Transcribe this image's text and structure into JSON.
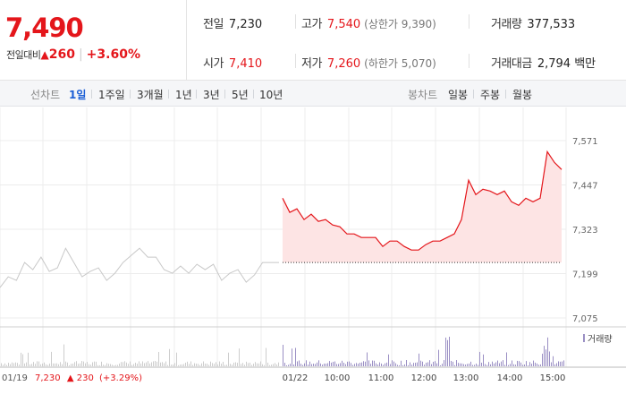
{
  "quote": {
    "price": "7,490",
    "change_label": "전일대비",
    "change_icon": "up-triangle-icon",
    "change_symbol": "▲",
    "change_value": "260",
    "change_pct": "+3.60%",
    "stats": {
      "prev_close": {
        "label": "전일",
        "value": "7,230"
      },
      "high": {
        "label": "고가",
        "value": "7,540",
        "sub": "(상한가 9,390)"
      },
      "volume": {
        "label": "거래량",
        "value": "377,533"
      },
      "open": {
        "label": "시가",
        "value": "7,410"
      },
      "low": {
        "label": "저가",
        "value": "7,260",
        "sub": "(하한가 5,070)"
      },
      "trade_value": {
        "label": "거래대금",
        "value": "2,794 백만"
      }
    }
  },
  "tabs": {
    "line_label": "선차트",
    "line_items": [
      "1일",
      "1주일",
      "3개월",
      "1년",
      "3년",
      "5년",
      "10년"
    ],
    "line_active": 0,
    "candle_label": "봉차트",
    "candle_items": [
      "일봉",
      "주봉",
      "월봉"
    ]
  },
  "colors": {
    "up": "#e4161b",
    "prev_day_line": "#c8c8c8",
    "fill": "#fde4e4",
    "volume": "#9a8fc4",
    "link": "#1c5fd6"
  },
  "chart_data": {
    "type": "line",
    "ylim": [
      7075,
      7571
    ],
    "y_ticks": [
      7571,
      7447,
      7323,
      7199,
      7075
    ],
    "x_ticks": [
      "01/22",
      "10:00",
      "11:00",
      "12:00",
      "13:00",
      "14:00",
      "15:00"
    ],
    "prev_close": 7230,
    "series": [
      {
        "values": [
          7160,
          7190,
          7180,
          7230,
          7210,
          7245,
          7205,
          7215,
          7270,
          7230,
          7190,
          7205,
          7215,
          7180,
          7200,
          7230,
          7250,
          7270,
          7245,
          7245,
          7210,
          7200,
          7220,
          7200,
          7225,
          7210,
          7225,
          7180,
          7200,
          7210,
          7175,
          7195,
          7230,
          7230,
          7230
        ]
      },
      {
        "values": [
          7410,
          7370,
          7380,
          7350,
          7365,
          7345,
          7350,
          7335,
          7330,
          7310,
          7310,
          7300,
          7300,
          7300,
          7275,
          7290,
          7290,
          7275,
          7265,
          7265,
          7280,
          7290,
          7290,
          7300,
          7310,
          7350,
          7460,
          7420,
          7435,
          7430,
          7420,
          7430,
          7400,
          7390,
          7410,
          7400,
          7410,
          7540,
          7510,
          7490
        ]
      }
    ],
    "volume_legend": "거래량",
    "prev_day_label": {
      "date": "01/19",
      "price": "7,230",
      "icon": "up-triangle-icon",
      "symbol": "▲",
      "change": "230",
      "pct": "(+3.29%)"
    }
  }
}
